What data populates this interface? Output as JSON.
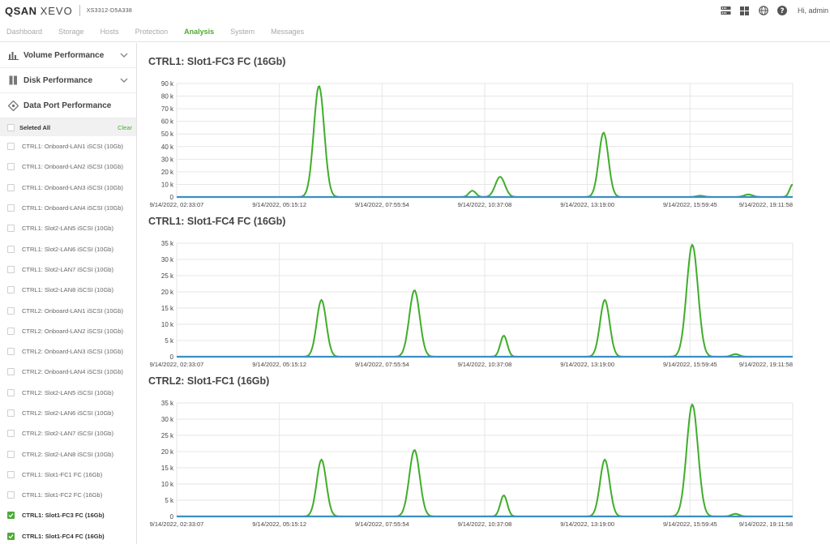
{
  "header": {
    "logo_text": "QSAN",
    "logo_sub": "XEVO",
    "model": "XS3312-D5A338",
    "greeting": "Hi, admin",
    "icons": [
      "network-icon",
      "grid-icon",
      "globe-icon",
      "help-icon"
    ]
  },
  "nav": {
    "items": [
      "Dashboard",
      "Storage",
      "Hosts",
      "Protection",
      "Analysis",
      "System",
      "Messages"
    ],
    "active": "Analysis"
  },
  "sidebar": {
    "sections": [
      {
        "label": "Volume Performance",
        "icon": "bar-chart-icon"
      },
      {
        "label": "Disk Performance",
        "icon": "disk-icon"
      },
      {
        "label": "Data Port Performance",
        "icon": "port-icon"
      }
    ],
    "select_all_label": "Seleted All",
    "clear_label": "Clear",
    "ports": [
      {
        "label": "CTRL1: Onboard-LAN1 iSCSI (10Gb)",
        "checked": false
      },
      {
        "label": "CTRL1: Onboard-LAN2 iSCSI (10Gb)",
        "checked": false
      },
      {
        "label": "CTRL1: Onboard-LAN3 iSCSI (10Gb)",
        "checked": false
      },
      {
        "label": "CTRL1: Onboard-LAN4 iSCSI (10Gb)",
        "checked": false
      },
      {
        "label": "CTRL1: Slot2-LAN5 iSCSI (10Gb)",
        "checked": false
      },
      {
        "label": "CTRL1: Slot2-LAN6 iSCSI (10Gb)",
        "checked": false
      },
      {
        "label": "CTRL1: Slot2-LAN7 iSCSI (10Gb)",
        "checked": false
      },
      {
        "label": "CTRL1: Slot2-LAN8 iSCSI (10Gb)",
        "checked": false
      },
      {
        "label": "CTRL2: Onboard-LAN1 iSCSI (10Gb)",
        "checked": false
      },
      {
        "label": "CTRL2: Onboard-LAN2 iSCSI (10Gb)",
        "checked": false
      },
      {
        "label": "CTRL2: Onboard-LAN3 iSCSI (10Gb)",
        "checked": false
      },
      {
        "label": "CTRL2: Onboard-LAN4 iSCSI (10Gb)",
        "checked": false
      },
      {
        "label": "CTRL2: Slot2-LAN5 iSCSI (10Gb)",
        "checked": false
      },
      {
        "label": "CTRL2: Slot2-LAN6 iSCSI (10Gb)",
        "checked": false
      },
      {
        "label": "CTRL2: Slot2-LAN7 iSCSI (10Gb)",
        "checked": false
      },
      {
        "label": "CTRL2: Slot2-LAN8 iSCSI (10Gb)",
        "checked": false
      },
      {
        "label": "CTRL1: Slot1-FC1 FC (16Gb)",
        "checked": false
      },
      {
        "label": "CTRL1: Slot1-FC2 FC (16Gb)",
        "checked": false
      },
      {
        "label": "CTRL1: Slot1-FC3 FC (16Gb)",
        "checked": true
      },
      {
        "label": "CTRL1: Slot1-FC4 FC (16Gb)",
        "checked": true
      }
    ]
  },
  "colors": {
    "accent": "#4caa33",
    "series_green": "#3fae2a",
    "series_blue": "#3a8fc4"
  },
  "chart_data": [
    {
      "type": "line",
      "title": "CTRL1: Slot1-FC3 FC (16Gb)",
      "x_tick_labels": [
        "9/14/2022, 02:33:07",
        "9/14/2022, 05:15:12",
        "9/14/2022, 07:55:54",
        "9/14/2022, 10:37:08",
        "9/14/2022, 13:19:00",
        "9/14/2022, 15:59:45",
        "9/14/2022, 19:11:58"
      ],
      "y_ticks": [
        0,
        10000,
        20000,
        30000,
        40000,
        50000,
        60000,
        70000,
        80000,
        90000
      ],
      "y_tick_labels": [
        "0",
        "10 k",
        "20 k",
        "30 k",
        "40 k",
        "50 k",
        "60 k",
        "70 k",
        "80 k",
        "90 k"
      ],
      "ylim": [
        0,
        90000
      ],
      "xlim": [
        0,
        1
      ],
      "grid": true,
      "series": [
        {
          "color": "green",
          "peaks": [
            {
              "x": 0.231,
              "y": 88000,
              "w": 0.012
            },
            {
              "x": 0.48,
              "y": 5000,
              "w": 0.008
            },
            {
              "x": 0.525,
              "y": 16000,
              "w": 0.011
            },
            {
              "x": 0.693,
              "y": 51000,
              "w": 0.011
            },
            {
              "x": 0.85,
              "y": 1000,
              "w": 0.009
            },
            {
              "x": 0.928,
              "y": 2000,
              "w": 0.01
            },
            {
              "x": 1.0,
              "y": 10000,
              "w": 0.007
            }
          ]
        },
        {
          "color": "blue",
          "peaks": []
        }
      ]
    },
    {
      "type": "line",
      "title": "CTRL1: Slot1-FC4 FC (16Gb)",
      "x_tick_labels": [
        "9/14/2022, 02:33:07",
        "9/14/2022, 05:15:12",
        "9/14/2022, 07:55:54",
        "9/14/2022, 10:37:08",
        "9/14/2022, 13:19:00",
        "9/14/2022, 15:59:45",
        "9/14/2022, 19:11:58"
      ],
      "y_ticks": [
        0,
        5000,
        10000,
        15000,
        20000,
        25000,
        30000,
        35000
      ],
      "y_tick_labels": [
        "0",
        "5 k",
        "10 k",
        "15 k",
        "20 k",
        "25 k",
        "30 k",
        "35 k"
      ],
      "ylim": [
        0,
        35000
      ],
      "xlim": [
        0,
        1
      ],
      "grid": true,
      "series": [
        {
          "color": "green",
          "peaks": [
            {
              "x": 0.235,
              "y": 17500,
              "w": 0.011
            },
            {
              "x": 0.386,
              "y": 20500,
              "w": 0.012
            },
            {
              "x": 0.531,
              "y": 6500,
              "w": 0.008
            },
            {
              "x": 0.695,
              "y": 17500,
              "w": 0.011
            },
            {
              "x": 0.837,
              "y": 34500,
              "w": 0.013
            },
            {
              "x": 0.907,
              "y": 800,
              "w": 0.009
            }
          ]
        },
        {
          "color": "blue",
          "peaks": []
        }
      ]
    },
    {
      "type": "line",
      "title": "CTRL2: Slot1-FC1 (16Gb)",
      "x_tick_labels": [
        "9/14/2022, 02:33:07",
        "9/14/2022, 05:15:12",
        "9/14/2022, 07:55:54",
        "9/14/2022, 10:37:08",
        "9/14/2022, 13:19:00",
        "9/14/2022, 15:59:45",
        "9/14/2022, 19:11:58"
      ],
      "y_ticks": [
        0,
        5000,
        10000,
        15000,
        20000,
        25000,
        30000,
        35000
      ],
      "y_tick_labels": [
        "0",
        "5 k",
        "10 k",
        "15 k",
        "20 k",
        "25 k",
        "30 k",
        "35 k"
      ],
      "ylim": [
        0,
        35000
      ],
      "xlim": [
        0,
        1
      ],
      "grid": true,
      "series": [
        {
          "color": "green",
          "peaks": [
            {
              "x": 0.235,
              "y": 17500,
              "w": 0.011
            },
            {
              "x": 0.386,
              "y": 20500,
              "w": 0.012
            },
            {
              "x": 0.531,
              "y": 6500,
              "w": 0.008
            },
            {
              "x": 0.695,
              "y": 17500,
              "w": 0.011
            },
            {
              "x": 0.837,
              "y": 34500,
              "w": 0.013
            },
            {
              "x": 0.907,
              "y": 800,
              "w": 0.009
            }
          ]
        },
        {
          "color": "blue",
          "peaks": []
        }
      ]
    }
  ]
}
